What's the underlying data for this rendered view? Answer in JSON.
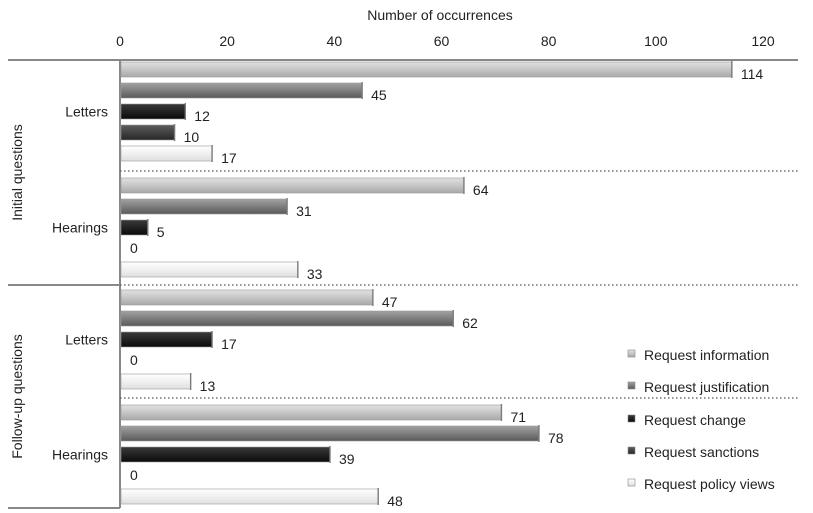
{
  "chart_data": {
    "type": "bar",
    "orientation": "horizontal",
    "title": "",
    "xlabel": "Number of occurrences",
    "xlim": [
      0,
      120
    ],
    "xticks": [
      0,
      20,
      40,
      60,
      80,
      100,
      120
    ],
    "groups": [
      {
        "label": "Initial questions",
        "categories": [
          {
            "label": "Letters",
            "values": [
              114,
              45,
              12,
              10,
              17
            ]
          },
          {
            "label": "Hearings",
            "values": [
              64,
              31,
              5,
              0,
              33
            ]
          }
        ]
      },
      {
        "label": "Follow-up questions",
        "categories": [
          {
            "label": "Letters",
            "values": [
              47,
              62,
              17,
              0,
              13
            ]
          },
          {
            "label": "Hearings",
            "values": [
              71,
              78,
              39,
              0,
              48
            ]
          }
        ]
      }
    ],
    "series": [
      {
        "name": "Request information",
        "color": "#c4c4c4"
      },
      {
        "name": "Request justification",
        "color": "#7d7d7d"
      },
      {
        "name": "Request change",
        "color": "#1c1c1c"
      },
      {
        "name": "Request sanctions",
        "color": "#3e3e3e"
      },
      {
        "name": "Request policy views",
        "color": "#f3f3f3"
      }
    ],
    "legend_position": "bottom-right",
    "grid": false
  }
}
